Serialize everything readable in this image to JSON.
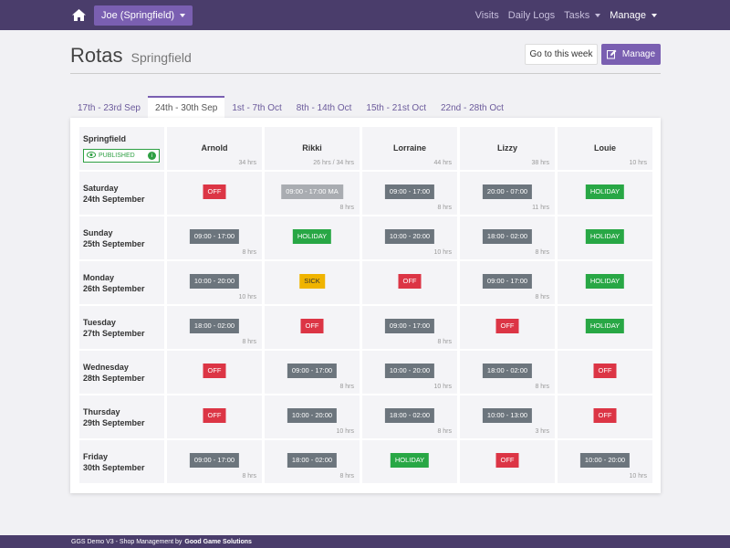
{
  "colors": {
    "nav_bg": "#4a3d6b",
    "accent": "#7a5fb1",
    "off": "#dc3545",
    "holiday": "#28a745",
    "sick": "#f0b400",
    "shift": "#6c757d",
    "shift_pending": "#a9acb1"
  },
  "nav": {
    "user": "Joe (Springfield)",
    "links": [
      {
        "label": "Visits",
        "active": false,
        "caret": false
      },
      {
        "label": "Daily Logs",
        "active": false,
        "caret": false
      },
      {
        "label": "Tasks",
        "active": false,
        "caret": true
      },
      {
        "label": "Manage",
        "active": true,
        "caret": true
      }
    ]
  },
  "header": {
    "title": "Rotas",
    "subtitle": "Springfield",
    "week_button": "Go to this week",
    "manage_button": "Manage"
  },
  "tabs": [
    {
      "label": "17th - 23rd Sep",
      "active": false
    },
    {
      "label": "24th - 30th Sep",
      "active": true
    },
    {
      "label": "1st - 7th Oct",
      "active": false
    },
    {
      "label": "8th - 14th Oct",
      "active": false
    },
    {
      "label": "15th - 21st Oct",
      "active": false
    },
    {
      "label": "22nd - 28th Oct",
      "active": false
    }
  ],
  "rota": {
    "location": "Springfield",
    "status": "PUBLISHED",
    "staff": [
      {
        "name": "Arnold",
        "hours": "34 hrs"
      },
      {
        "name": "Rikki",
        "hours": "26 hrs / 34 hrs"
      },
      {
        "name": "Lorraine",
        "hours": "44 hrs"
      },
      {
        "name": "Lizzy",
        "hours": "38 hrs"
      },
      {
        "name": "Louie",
        "hours": "10 hrs"
      }
    ],
    "days": [
      {
        "day": "Saturday",
        "date": "24th September",
        "shifts": [
          {
            "label": "OFF",
            "type": "off",
            "hours": ""
          },
          {
            "label": "09:00 - 17:00 MA",
            "type": "pending",
            "hours": "8 hrs"
          },
          {
            "label": "09:00 - 17:00",
            "type": "shift",
            "hours": "8 hrs"
          },
          {
            "label": "20:00 - 07:00",
            "type": "shift",
            "hours": "11 hrs"
          },
          {
            "label": "HOLIDAY",
            "type": "holiday",
            "hours": ""
          }
        ]
      },
      {
        "day": "Sunday",
        "date": "25th September",
        "shifts": [
          {
            "label": "09:00 - 17:00",
            "type": "shift",
            "hours": "8 hrs"
          },
          {
            "label": "HOLIDAY",
            "type": "holiday",
            "hours": ""
          },
          {
            "label": "10:00 - 20:00",
            "type": "shift",
            "hours": "10 hrs"
          },
          {
            "label": "18:00 - 02:00",
            "type": "shift",
            "hours": "8 hrs"
          },
          {
            "label": "HOLIDAY",
            "type": "holiday",
            "hours": ""
          }
        ]
      },
      {
        "day": "Monday",
        "date": "26th September",
        "shifts": [
          {
            "label": "10:00 - 20:00",
            "type": "shift",
            "hours": "10 hrs"
          },
          {
            "label": "SICK",
            "type": "sick",
            "hours": ""
          },
          {
            "label": "OFF",
            "type": "off",
            "hours": ""
          },
          {
            "label": "09:00 - 17:00",
            "type": "shift",
            "hours": "8 hrs"
          },
          {
            "label": "HOLIDAY",
            "type": "holiday",
            "hours": ""
          }
        ]
      },
      {
        "day": "Tuesday",
        "date": "27th September",
        "shifts": [
          {
            "label": "18:00 - 02:00",
            "type": "shift",
            "hours": "8 hrs"
          },
          {
            "label": "OFF",
            "type": "off",
            "hours": ""
          },
          {
            "label": "09:00 - 17:00",
            "type": "shift",
            "hours": "8 hrs"
          },
          {
            "label": "OFF",
            "type": "off",
            "hours": ""
          },
          {
            "label": "HOLIDAY",
            "type": "holiday",
            "hours": ""
          }
        ]
      },
      {
        "day": "Wednesday",
        "date": "28th September",
        "shifts": [
          {
            "label": "OFF",
            "type": "off",
            "hours": ""
          },
          {
            "label": "09:00 - 17:00",
            "type": "shift",
            "hours": "8 hrs"
          },
          {
            "label": "10:00 - 20:00",
            "type": "shift",
            "hours": "10 hrs"
          },
          {
            "label": "18:00 - 02:00",
            "type": "shift",
            "hours": "8 hrs"
          },
          {
            "label": "OFF",
            "type": "off",
            "hours": ""
          }
        ]
      },
      {
        "day": "Thursday",
        "date": "29th September",
        "shifts": [
          {
            "label": "OFF",
            "type": "off",
            "hours": ""
          },
          {
            "label": "10:00 - 20:00",
            "type": "shift",
            "hours": "10 hrs"
          },
          {
            "label": "18:00 - 02:00",
            "type": "shift",
            "hours": "8 hrs"
          },
          {
            "label": "10:00 - 13:00",
            "type": "shift",
            "hours": "3 hrs"
          },
          {
            "label": "OFF",
            "type": "off",
            "hours": ""
          }
        ]
      },
      {
        "day": "Friday",
        "date": "30th September",
        "shifts": [
          {
            "label": "09:00 - 17:00",
            "type": "shift",
            "hours": "8 hrs"
          },
          {
            "label": "18:00 - 02:00",
            "type": "shift",
            "hours": "8 hrs"
          },
          {
            "label": "HOLIDAY",
            "type": "holiday",
            "hours": ""
          },
          {
            "label": "OFF",
            "type": "off",
            "hours": ""
          },
          {
            "label": "10:00 - 20:00",
            "type": "shift",
            "hours": "10 hrs"
          }
        ]
      }
    ]
  },
  "footer": {
    "text": "GGS Demo V3 - Shop Management by",
    "company": "Good Game Solutions"
  },
  "icons": {
    "home": "home-icon",
    "edit": "edit-icon",
    "eye": "eye-icon",
    "info": "info-icon"
  }
}
